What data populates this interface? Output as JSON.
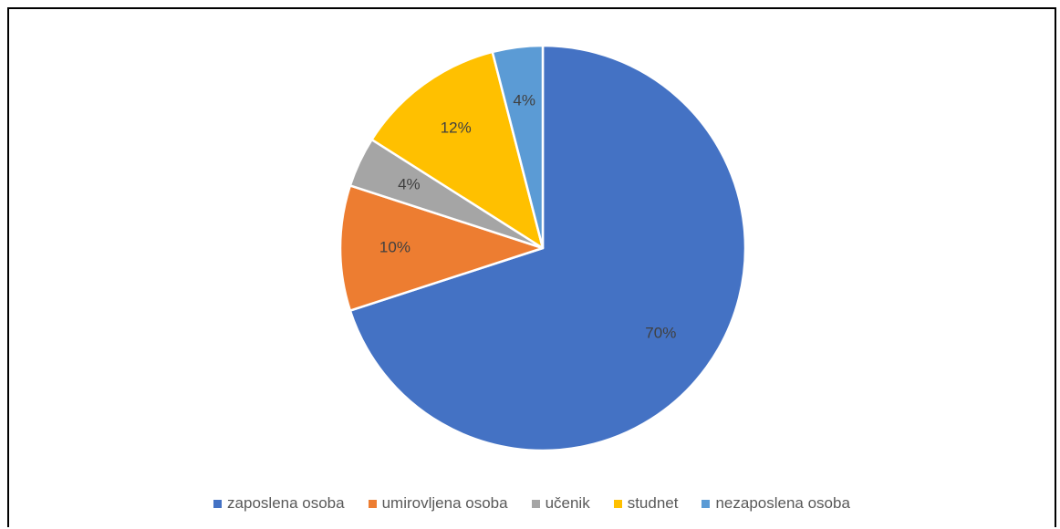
{
  "chart_data": {
    "type": "pie",
    "start_angle_deg": 0,
    "direction": "clockwise",
    "slices": [
      {
        "label": "zaposlena osoba",
        "value": 70,
        "display": "70%",
        "color": "#4472C4"
      },
      {
        "label": "umirovljena osoba",
        "value": 10,
        "display": "10%",
        "color": "#ED7D31"
      },
      {
        "label": "učenik",
        "value": 4,
        "display": "4%",
        "color": "#A5A5A5"
      },
      {
        "label": "studnet",
        "value": 12,
        "display": "12%",
        "color": "#FFC000"
      },
      {
        "label": "nezaposlena osoba",
        "value": 4,
        "display": "4%",
        "color": "#5B9BD5"
      }
    ],
    "legend_position": "bottom"
  }
}
